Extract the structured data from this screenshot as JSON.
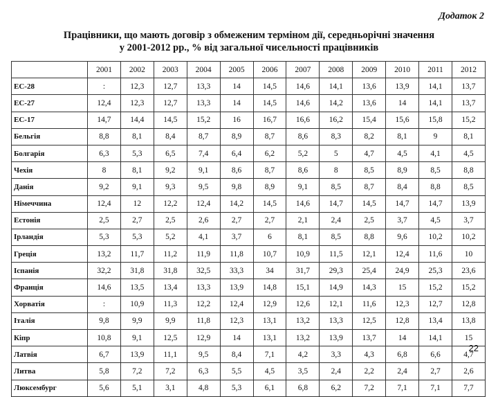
{
  "header": {
    "appendix_label": "Додаток 2",
    "title_line1": "Працівники, що мають договір з обмеженим терміном дії, середньорічні значення",
    "title_line2": "у 2001-2012 рр., % від загальної чисельності працівників"
  },
  "table": {
    "corner": "",
    "years": [
      "2001",
      "2002",
      "2003",
      "2004",
      "2005",
      "2006",
      "2007",
      "2008",
      "2009",
      "2010",
      "2011",
      "2012"
    ],
    "rows": [
      {
        "country": "ЕС-28",
        "values": [
          ":",
          "12,3",
          "12,7",
          "13,3",
          "14",
          "14,5",
          "14,6",
          "14,1",
          "13,6",
          "13,9",
          "14,1",
          "13,7"
        ]
      },
      {
        "country": "ЕС-27",
        "values": [
          "12,4",
          "12,3",
          "12,7",
          "13,3",
          "14",
          "14,5",
          "14,6",
          "14,2",
          "13,6",
          "14",
          "14,1",
          "13,7"
        ]
      },
      {
        "country": "ЕС-17",
        "values": [
          "14,7",
          "14,4",
          "14,5",
          "15,2",
          "16",
          "16,7",
          "16,6",
          "16,2",
          "15,4",
          "15,6",
          "15,8",
          "15,2"
        ]
      },
      {
        "country": "Бельгія",
        "values": [
          "8,8",
          "8,1",
          "8,4",
          "8,7",
          "8,9",
          "8,7",
          "8,6",
          "8,3",
          "8,2",
          "8,1",
          "9",
          "8,1"
        ]
      },
      {
        "country": "Болгарія",
        "values": [
          "6,3",
          "5,3",
          "6,5",
          "7,4",
          "6,4",
          "6,2",
          "5,2",
          "5",
          "4,7",
          "4,5",
          "4,1",
          "4,5"
        ]
      },
      {
        "country": "Чехія",
        "values": [
          "8",
          "8,1",
          "9,2",
          "9,1",
          "8,6",
          "8,7",
          "8,6",
          "8",
          "8,5",
          "8,9",
          "8,5",
          "8,8"
        ]
      },
      {
        "country": "Данія",
        "values": [
          "9,2",
          "9,1",
          "9,3",
          "9,5",
          "9,8",
          "8,9",
          "9,1",
          "8,5",
          "8,7",
          "8,4",
          "8,8",
          "8,5"
        ]
      },
      {
        "country": "Німеччина",
        "values": [
          "12,4",
          "12",
          "12,2",
          "12,4",
          "14,2",
          "14,5",
          "14,6",
          "14,7",
          "14,5",
          "14,7",
          "14,7",
          "13,9"
        ]
      },
      {
        "country": "Естонія",
        "values": [
          "2,5",
          "2,7",
          "2,5",
          "2,6",
          "2,7",
          "2,7",
          "2,1",
          "2,4",
          "2,5",
          "3,7",
          "4,5",
          "3,7"
        ]
      },
      {
        "country": "Ірландія",
        "values": [
          "5,3",
          "5,3",
          "5,2",
          "4,1",
          "3,7",
          "6",
          "8,1",
          "8,5",
          "8,8",
          "9,6",
          "10,2",
          "10,2"
        ]
      },
      {
        "country": "Греція",
        "values": [
          "13,2",
          "11,7",
          "11,2",
          "11,9",
          "11,8",
          "10,7",
          "10,9",
          "11,5",
          "12,1",
          "12,4",
          "11,6",
          "10"
        ]
      },
      {
        "country": "Іспанія",
        "values": [
          "32,2",
          "31,8",
          "31,8",
          "32,5",
          "33,3",
          "34",
          "31,7",
          "29,3",
          "25,4",
          "24,9",
          "25,3",
          "23,6"
        ]
      },
      {
        "country": "Франція",
        "values": [
          "14,6",
          "13,5",
          "13,4",
          "13,3",
          "13,9",
          "14,8",
          "15,1",
          "14,9",
          "14,3",
          "15",
          "15,2",
          "15,2"
        ]
      },
      {
        "country": "Хорватія",
        "values": [
          ":",
          "10,9",
          "11,3",
          "12,2",
          "12,4",
          "12,9",
          "12,6",
          "12,1",
          "11,6",
          "12,3",
          "12,7",
          "12,8"
        ]
      },
      {
        "country": "Італія",
        "values": [
          "9,8",
          "9,9",
          "9,9",
          "11,8",
          "12,3",
          "13,1",
          "13,2",
          "13,3",
          "12,5",
          "12,8",
          "13,4",
          "13,8"
        ]
      },
      {
        "country": "Кіпр",
        "values": [
          "10,8",
          "9,1",
          "12,5",
          "12,9",
          "14",
          "13,1",
          "13,2",
          "13,9",
          "13,7",
          "14",
          "14,1",
          "15"
        ]
      },
      {
        "country": "Латвія",
        "values": [
          "6,7",
          "13,9",
          "11,1",
          "9,5",
          "8,4",
          "7,1",
          "4,2",
          "3,3",
          "4,3",
          "6,8",
          "6,6",
          "4,7"
        ]
      },
      {
        "country": "Литва",
        "values": [
          "5,8",
          "7,2",
          "7,2",
          "6,3",
          "5,5",
          "4,5",
          "3,5",
          "2,4",
          "2,2",
          "2,4",
          "2,7",
          "2,6"
        ]
      },
      {
        "country": "Люксембург",
        "values": [
          "5,6",
          "5,1",
          "3,1",
          "4,8",
          "5,3",
          "6,1",
          "6,8",
          "6,2",
          "7,2",
          "7,1",
          "7,1",
          "7,7"
        ]
      }
    ]
  },
  "page_number": "22"
}
